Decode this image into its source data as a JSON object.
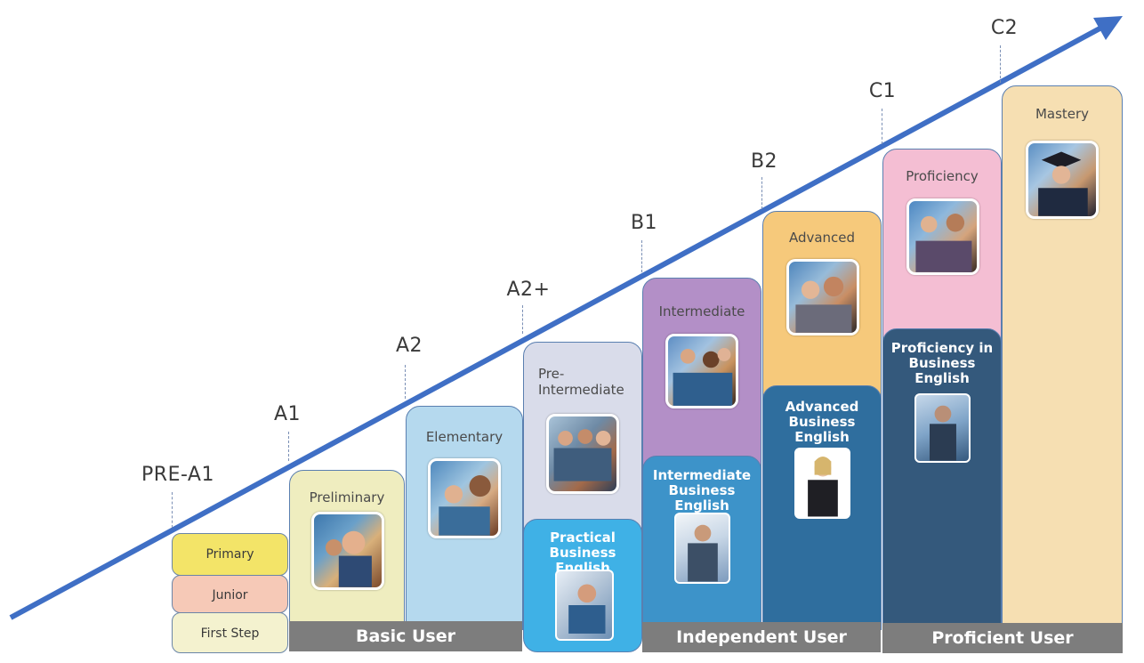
{
  "levels": [
    "PRE-A1",
    "A1",
    "A2",
    "A2+",
    "B1",
    "B2",
    "C1",
    "C2"
  ],
  "cards": {
    "primary": "Primary",
    "junior": "Junior",
    "first_step": "First Step",
    "preliminary": "Preliminary",
    "elementary": "Elementary",
    "pre_intermediate": "Pre-\nIntermediate",
    "intermediate": "Intermediate",
    "advanced": "Advanced",
    "proficiency": "Proficiency",
    "mastery": "Mastery",
    "practical_business": "Practical\nBusiness English",
    "intermediate_business": "Intermediate\nBusiness English",
    "advanced_business": "Advanced\nBusiness English",
    "proficiency_business": "Proficiency in\nBusiness English"
  },
  "bars": {
    "basic": "Basic User",
    "independent": "Independent User",
    "proficient": "Proficient User"
  },
  "colors": {
    "arrow": "#3f6fc5",
    "primary": "#f3e468",
    "junior": "#f6c9b7",
    "first_step": "#f4f2cf",
    "preliminary": "#efedbf",
    "elementary": "#b5d9ee",
    "pre_intermediate": "#d9dcea",
    "practical_business": "#3fb1e6",
    "intermediate": "#b38fc7",
    "intermediate_business": "#3d93c9",
    "advanced": "#f6c97b",
    "advanced_business": "#2f6e9e",
    "proficiency": "#f4bed3",
    "proficiency_business": "#34597c",
    "mastery": "#f6dfb2",
    "bar": "#7d7d7d"
  }
}
